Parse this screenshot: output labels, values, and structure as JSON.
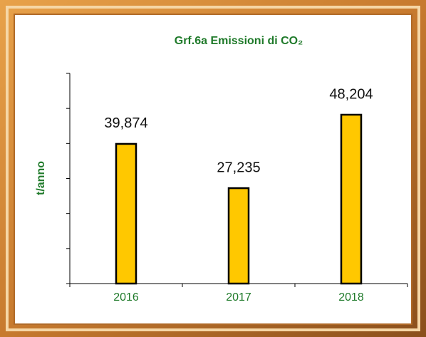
{
  "chart_data": {
    "type": "bar",
    "title": "Grf.6a Emissioni di CO₂",
    "y_label": "t/anno",
    "categories": [
      "2016",
      "2017",
      "2018"
    ],
    "values": [
      39874,
      27235,
      48204
    ],
    "value_labels": [
      "39,874",
      "27,235",
      "48,204"
    ],
    "color": "#ffc800",
    "ylim": [
      0,
      60000
    ],
    "yticks": [
      0,
      10000,
      20000,
      30000,
      40000,
      50000,
      60000
    ]
  }
}
